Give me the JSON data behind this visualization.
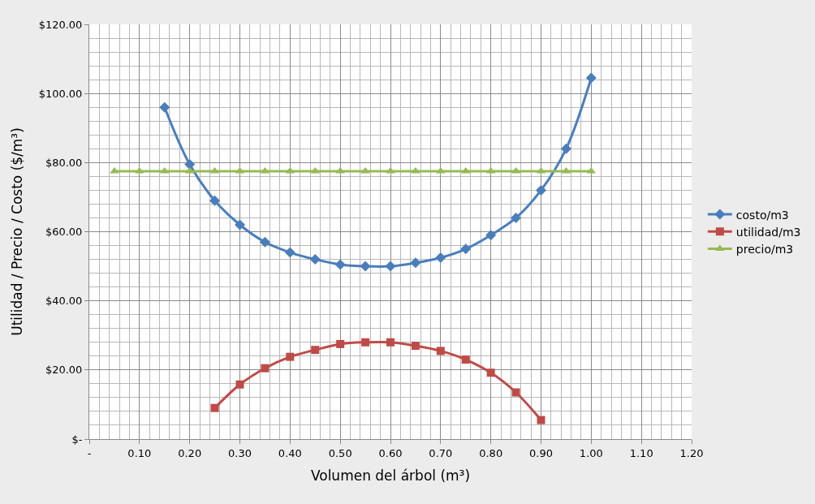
{
  "chart_data": {
    "type": "line",
    "xlabel": "Volumen del árbol (m³)",
    "ylabel": "Utilidad / Precio / Costo ($/m³)",
    "xlim": [
      0,
      1.2
    ],
    "xticks": [
      {
        "value": 0,
        "label": "-"
      },
      {
        "value": 0.1,
        "label": "0.10"
      },
      {
        "value": 0.2,
        "label": "0.20"
      },
      {
        "value": 0.3,
        "label": "0.30"
      },
      {
        "value": 0.4,
        "label": "0.40"
      },
      {
        "value": 0.5,
        "label": "0.50"
      },
      {
        "value": 0.6,
        "label": "0.60"
      },
      {
        "value": 0.7,
        "label": "0.70"
      },
      {
        "value": 0.8,
        "label": "0.80"
      },
      {
        "value": 0.9,
        "label": "0.90"
      },
      {
        "value": 1.0,
        "label": "1.00"
      },
      {
        "value": 1.1,
        "label": "1.10"
      },
      {
        "value": 1.2,
        "label": "1.20"
      }
    ],
    "ylim": [
      0,
      120
    ],
    "yticks": [
      {
        "value": 0,
        "label": "$-"
      },
      {
        "value": 20,
        "label": "$20.00"
      },
      {
        "value": 40,
        "label": "$40.00"
      },
      {
        "value": 60,
        "label": "$60.00"
      },
      {
        "value": 80,
        "label": "$80.00"
      },
      {
        "value": 100,
        "label": "$100.00"
      },
      {
        "value": 120,
        "label": "$120.00"
      }
    ],
    "grid": true,
    "legend": "right",
    "series": [
      {
        "name": "costo/m3",
        "color": "#4a7ebb",
        "marker": "diamond",
        "x": [
          0.15,
          0.2,
          0.25,
          0.3,
          0.35,
          0.4,
          0.45,
          0.5,
          0.55,
          0.6,
          0.65,
          0.7,
          0.75,
          0.8,
          0.85,
          0.9,
          0.95,
          1.0
        ],
        "values": [
          96,
          79.5,
          69,
          62,
          57,
          54,
          52,
          50.5,
          50,
          50,
          51,
          52.5,
          55,
          59,
          64,
          72,
          84,
          104.5
        ]
      },
      {
        "name": "utilidad/m3",
        "color": "#be4b48",
        "marker": "square",
        "x": [
          0.25,
          0.3,
          0.35,
          0.4,
          0.45,
          0.5,
          0.55,
          0.6,
          0.65,
          0.7,
          0.75,
          0.8,
          0.85,
          0.9
        ],
        "values": [
          9,
          15.8,
          20.5,
          23.8,
          25.8,
          27.5,
          28,
          28,
          27,
          25.5,
          23,
          19.2,
          13.5,
          5.5
        ]
      },
      {
        "name": "precio/m3",
        "color": "#98b954",
        "marker": "triangle",
        "x": [
          0.05,
          0.1,
          0.15,
          0.2,
          0.25,
          0.3,
          0.35,
          0.4,
          0.45,
          0.5,
          0.55,
          0.6,
          0.65,
          0.7,
          0.75,
          0.8,
          0.85,
          0.9,
          0.95,
          1.0
        ],
        "values": [
          77.5,
          77.5,
          77.5,
          77.5,
          77.5,
          77.5,
          77.5,
          77.5,
          77.5,
          77.5,
          77.5,
          77.5,
          77.5,
          77.5,
          77.5,
          77.5,
          77.5,
          77.5,
          77.5,
          77.5
        ]
      }
    ]
  }
}
